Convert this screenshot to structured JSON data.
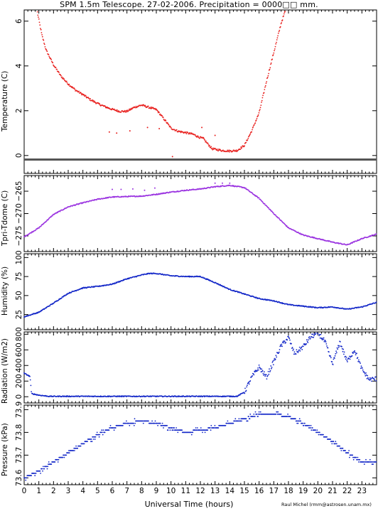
{
  "header": {
    "title": "SPM 1.5m Telescope. 27-02-2006. Precipitation = 0000□□ mm.",
    "xlabel": "Universal Time (hours)",
    "credit": "Raul Michel (rmm@astrosen.unam.mx)"
  },
  "colors": {
    "temperature": "#e8201e",
    "tpri": "#9a33e0",
    "humidity": "#1428c8",
    "radiation": "#1428c8",
    "pressure": "#1428c8"
  },
  "chart_data": [
    {
      "type": "scatter",
      "ylabel": "Temperature (C)",
      "xlim": [
        0,
        24
      ],
      "ylim": [
        -0.8,
        6.5
      ],
      "yticks": [
        0,
        2,
        4,
        6
      ],
      "series": [
        {
          "values": [
            [
              0.9,
              6.4
            ],
            [
              1.2,
              5.4
            ],
            [
              1.5,
              4.7
            ],
            [
              2,
              4.05
            ],
            [
              2.5,
              3.55
            ],
            [
              3,
              3.2
            ],
            [
              3.5,
              2.92
            ],
            [
              4,
              2.72
            ],
            [
              4.5,
              2.5
            ],
            [
              5,
              2.32
            ],
            [
              5.5,
              2.18
            ],
            [
              6,
              2.06
            ],
            [
              6.5,
              1.97
            ],
            [
              7,
              1.97
            ],
            [
              7.5,
              2.15
            ],
            [
              8,
              2.25
            ],
            [
              8.5,
              2.15
            ],
            [
              9,
              2.05
            ],
            [
              9.5,
              1.65
            ],
            [
              10,
              1.22
            ],
            [
              10.5,
              1.08
            ],
            [
              11,
              1.02
            ],
            [
              11.5,
              0.95
            ],
            [
              11.9,
              0.82
            ],
            [
              12.2,
              0.75
            ],
            [
              12.8,
              0.3
            ],
            [
              13.5,
              0.22
            ],
            [
              14,
              0.2
            ],
            [
              14.5,
              0.22
            ],
            [
              15,
              0.45
            ],
            [
              15.5,
              1.1
            ],
            [
              16,
              1.9
            ],
            [
              16.5,
              3.3
            ],
            [
              17,
              4.6
            ],
            [
              17.5,
              5.9
            ],
            [
              17.8,
              6.5
            ]
          ]
        }
      ]
    },
    {
      "type": "scatter",
      "ylabel": "Tpri-Tdome (C)",
      "xlim": [
        0,
        24
      ],
      "ylim": [
        -278.5,
        -261.5
      ],
      "yticks": [
        -275,
        -270,
        -265
      ],
      "ytick_labels": [
        "−275",
        "−270",
        "−265"
      ],
      "series": [
        {
          "values": [
            [
              0,
              -275.2
            ],
            [
              1,
              -273.2
            ],
            [
              2,
              -270.2
            ],
            [
              3,
              -268.5
            ],
            [
              4,
              -267.6
            ],
            [
              5,
              -266.8
            ],
            [
              6,
              -266.3
            ],
            [
              7,
              -266.2
            ],
            [
              8,
              -266.1
            ],
            [
              9,
              -265.7
            ],
            [
              10,
              -265.2
            ],
            [
              11,
              -264.8
            ],
            [
              12,
              -264.5
            ],
            [
              13,
              -264.0
            ],
            [
              14,
              -263.7
            ],
            [
              15,
              -264.2
            ],
            [
              16,
              -266.6
            ],
            [
              17,
              -270.0
            ],
            [
              18,
              -273.2
            ],
            [
              19,
              -274.8
            ],
            [
              20,
              -275.6
            ],
            [
              21,
              -276.4
            ],
            [
              22,
              -277.0
            ],
            [
              23,
              -275.6
            ],
            [
              24,
              -274.6
            ]
          ]
        }
      ]
    },
    {
      "type": "scatter",
      "ylabel": "Humidity (%)",
      "xlim": [
        0,
        24
      ],
      "ylim": [
        5,
        105
      ],
      "yticks": [
        25,
        50,
        75,
        100
      ],
      "series": [
        {
          "values": [
            [
              0,
              22
            ],
            [
              1,
              28
            ],
            [
              2,
              40
            ],
            [
              3,
              53
            ],
            [
              4,
              60
            ],
            [
              5,
              62
            ],
            [
              6,
              65
            ],
            [
              7,
              72
            ],
            [
              8,
              77
            ],
            [
              8.5,
              79
            ],
            [
              9,
              79
            ],
            [
              10,
              76
            ],
            [
              11,
              75
            ],
            [
              12,
              75
            ],
            [
              13,
              67
            ],
            [
              14,
              58
            ],
            [
              15,
              52
            ],
            [
              16,
              46
            ],
            [
              17,
              43
            ],
            [
              18,
              38
            ],
            [
              19,
              36
            ],
            [
              20,
              34
            ],
            [
              21,
              35
            ],
            [
              22,
              32
            ],
            [
              23,
              35
            ],
            [
              24,
              41
            ]
          ]
        }
      ]
    },
    {
      "type": "scatter",
      "ylabel": "Radiation (W/m2)",
      "xlim": [
        0,
        24
      ],
      "ylim": [
        -80,
        830
      ],
      "yticks": [
        0,
        200,
        400,
        600,
        800
      ],
      "series": [
        {
          "values": [
            [
              0,
              300
            ],
            [
              0.4,
              260
            ],
            [
              0.5,
              40
            ],
            [
              1,
              20
            ],
            [
              1.7,
              5
            ],
            [
              5,
              5
            ],
            [
              10,
              5
            ],
            [
              14.5,
              5
            ],
            [
              15,
              60
            ],
            [
              15.5,
              250
            ],
            [
              16,
              380
            ],
            [
              16.5,
              250
            ],
            [
              17,
              450
            ],
            [
              17.5,
              650
            ],
            [
              18,
              760
            ],
            [
              18.4,
              550
            ],
            [
              19,
              640
            ],
            [
              19.5,
              760
            ],
            [
              20,
              820
            ],
            [
              20.5,
              700
            ],
            [
              21,
              420
            ],
            [
              21.5,
              700
            ],
            [
              22,
              450
            ],
            [
              22.5,
              600
            ],
            [
              23,
              350
            ],
            [
              23.5,
              220
            ],
            [
              24,
              230
            ]
          ]
        }
      ]
    },
    {
      "type": "scatter",
      "ylabel": "Pressure (kPa)",
      "xlim": [
        0,
        24
      ],
      "ylim": [
        73.57,
        73.92
      ],
      "yticks": [
        73.6,
        73.7,
        73.8,
        73.9
      ],
      "ytick_labels": [
        "73.6",
        "73.7",
        "73.8",
        "73.9"
      ],
      "series": [
        {
          "values": [
            [
              0,
              73.6
            ],
            [
              1,
              73.63
            ],
            [
              2,
              73.67
            ],
            [
              3,
              73.71
            ],
            [
              4,
              73.75
            ],
            [
              5,
              73.79
            ],
            [
              6,
              73.82
            ],
            [
              7,
              73.84
            ],
            [
              8,
              73.85
            ],
            [
              9,
              73.84
            ],
            [
              10,
              73.82
            ],
            [
              11,
              73.8
            ],
            [
              12,
              73.81
            ],
            [
              13,
              73.82
            ],
            [
              14,
              73.84
            ],
            [
              15,
              73.86
            ],
            [
              16,
              73.88
            ],
            [
              17,
              73.88
            ],
            [
              18,
              73.87
            ],
            [
              19,
              73.84
            ],
            [
              20,
              73.8
            ],
            [
              21,
              73.76
            ],
            [
              22,
              73.71
            ],
            [
              23,
              73.67
            ],
            [
              24,
              73.67
            ]
          ]
        }
      ]
    }
  ],
  "x_ticks": [
    "0",
    "1",
    "2",
    "3",
    "4",
    "5",
    "6",
    "7",
    "8",
    "9",
    "10",
    "11",
    "12",
    "13",
    "14",
    "15",
    "16",
    "17",
    "18",
    "19",
    "20",
    "21",
    "22",
    "23"
  ]
}
